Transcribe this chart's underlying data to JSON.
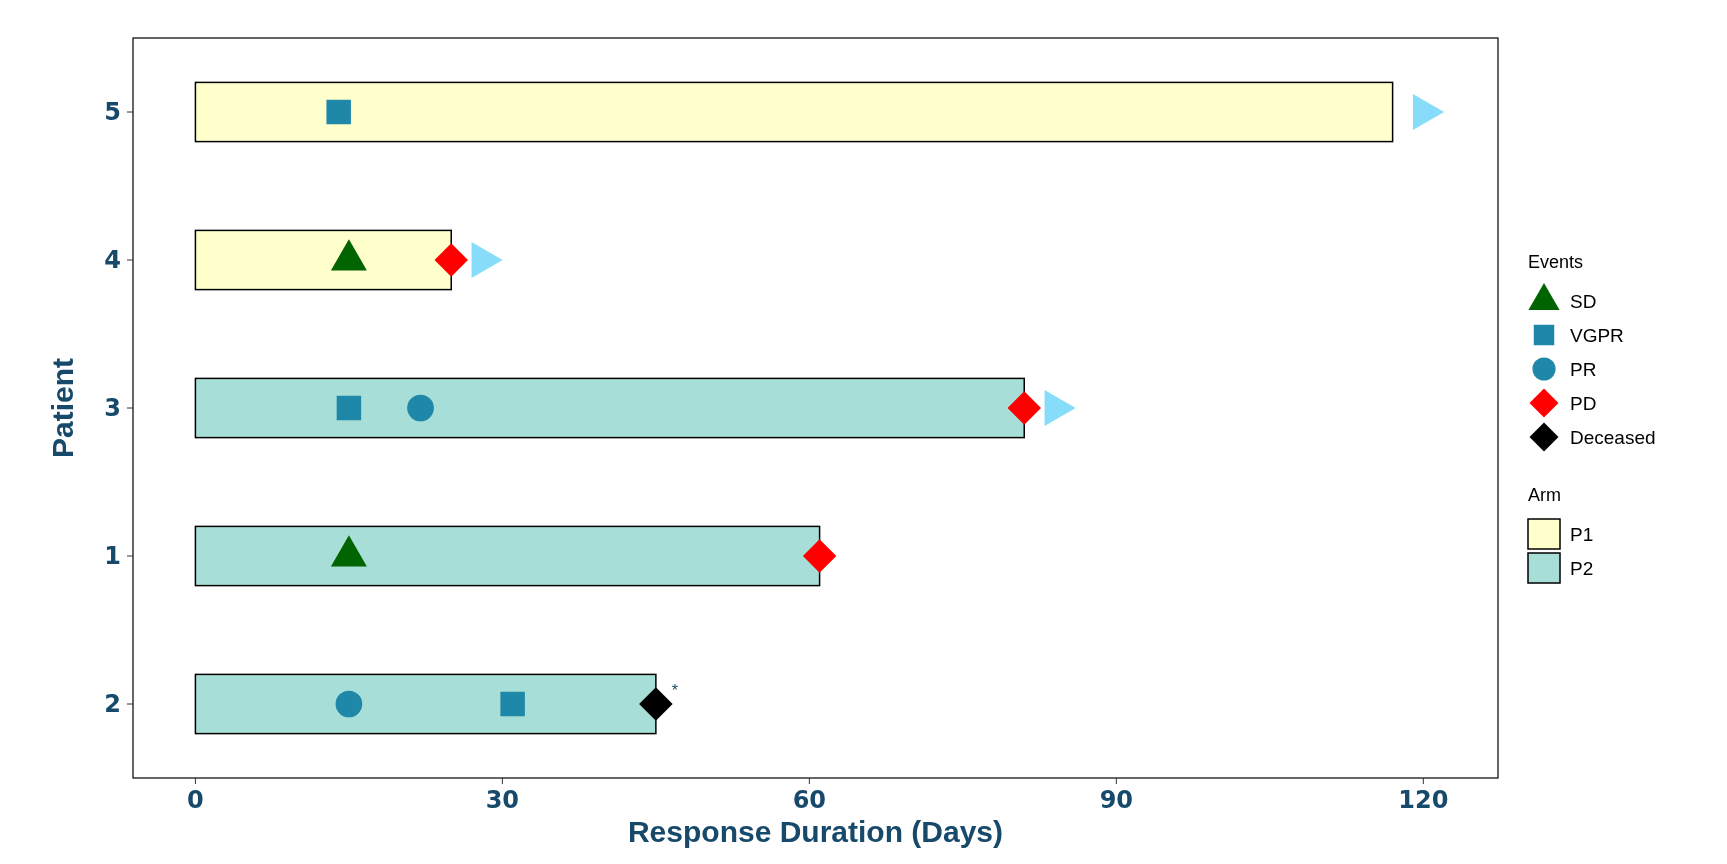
{
  "chart_data": {
    "type": "bar",
    "orientation": "horizontal",
    "xlabel": "Response Duration (Days)",
    "ylabel": "Patient",
    "categories": [
      "5",
      "4",
      "3",
      "1",
      "2"
    ],
    "xlim": [
      -6.1,
      127.3
    ],
    "xticks": [
      0,
      30,
      60,
      90,
      120
    ],
    "grid": false,
    "legend": "right",
    "legend_title": [
      "Events",
      "Arm"
    ],
    "series": [
      {
        "type": "scatter",
        "name": "SD",
        "color": "#006400",
        "marker": "triangle",
        "x": [
          "4",
          "1"
        ],
        "values": [
          15,
          15
        ]
      },
      {
        "type": "scatter",
        "name": "VGPR",
        "color": "#1f87a8",
        "marker": "square",
        "x": [
          "5",
          "3",
          "2"
        ],
        "values": [
          14,
          15,
          31
        ]
      },
      {
        "type": "scatter",
        "name": "PR",
        "color": "#1f87a8",
        "marker": "circle",
        "x": [
          "3",
          "2"
        ],
        "values": [
          22,
          15
        ]
      },
      {
        "type": "scatter",
        "name": "PD",
        "color": "#ff0000",
        "marker": "diamond",
        "x": [
          "4",
          "3",
          "1"
        ],
        "values": [
          25,
          81,
          61
        ]
      },
      {
        "type": "scatter",
        "name": "Deceased",
        "color": "#000000",
        "marker": "diamond",
        "x": [
          "2"
        ],
        "values": [
          45
        ]
      },
      {
        "type": "scatter",
        "color": "#87dcfa",
        "marker": "triangle-right",
        "x": [
          "5",
          "4",
          "3"
        ],
        "values": [
          120,
          28,
          84
        ]
      },
      {
        "name": "P1",
        "color": "#ffffcc",
        "values": [
          117,
          25,
          null,
          null,
          null
        ]
      },
      {
        "name": "P2",
        "color": "#a8ded8",
        "values": [
          null,
          null,
          81,
          61,
          45
        ]
      }
    ],
    "annotations": [
      {
        "text": "*",
        "x": 45,
        "y": "2"
      }
    ]
  }
}
